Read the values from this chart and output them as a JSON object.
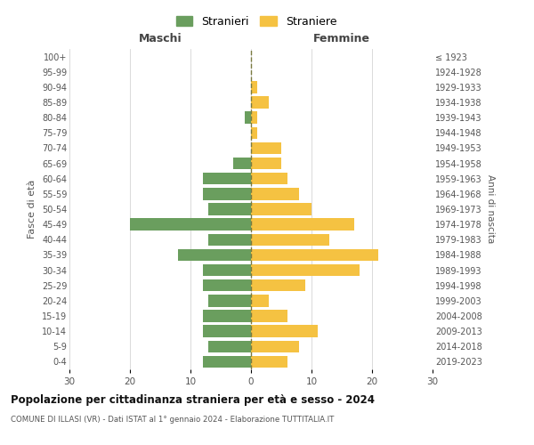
{
  "age_groups": [
    "0-4",
    "5-9",
    "10-14",
    "15-19",
    "20-24",
    "25-29",
    "30-34",
    "35-39",
    "40-44",
    "45-49",
    "50-54",
    "55-59",
    "60-64",
    "65-69",
    "70-74",
    "75-79",
    "80-84",
    "85-89",
    "90-94",
    "95-99",
    "100+"
  ],
  "birth_years": [
    "2019-2023",
    "2014-2018",
    "2009-2013",
    "2004-2008",
    "1999-2003",
    "1994-1998",
    "1989-1993",
    "1984-1988",
    "1979-1983",
    "1974-1978",
    "1969-1973",
    "1964-1968",
    "1959-1963",
    "1954-1958",
    "1949-1953",
    "1944-1948",
    "1939-1943",
    "1934-1938",
    "1929-1933",
    "1924-1928",
    "≤ 1923"
  ],
  "males": [
    8,
    7,
    8,
    8,
    7,
    8,
    8,
    12,
    7,
    20,
    7,
    8,
    8,
    3,
    0,
    0,
    1,
    0,
    0,
    0,
    0
  ],
  "females": [
    6,
    8,
    11,
    6,
    3,
    9,
    18,
    21,
    13,
    17,
    10,
    8,
    6,
    5,
    5,
    1,
    1,
    3,
    1,
    0,
    0
  ],
  "male_color": "#6a9e5e",
  "female_color": "#f5c242",
  "title": "Popolazione per cittadinanza straniera per età e sesso - 2024",
  "subtitle": "COMUNE DI ILLASI (VR) - Dati ISTAT al 1° gennaio 2024 - Elaborazione TUTTITALIA.IT",
  "xlabel_left": "Maschi",
  "xlabel_right": "Femmine",
  "ylabel_left": "Fasce di età",
  "ylabel_right": "Anni di nascita",
  "xlim": 30,
  "legend_stranieri": "Stranieri",
  "legend_straniere": "Straniere",
  "bg_color": "#ffffff",
  "grid_color": "#cccccc",
  "dashed_line_color": "#7a7a40"
}
